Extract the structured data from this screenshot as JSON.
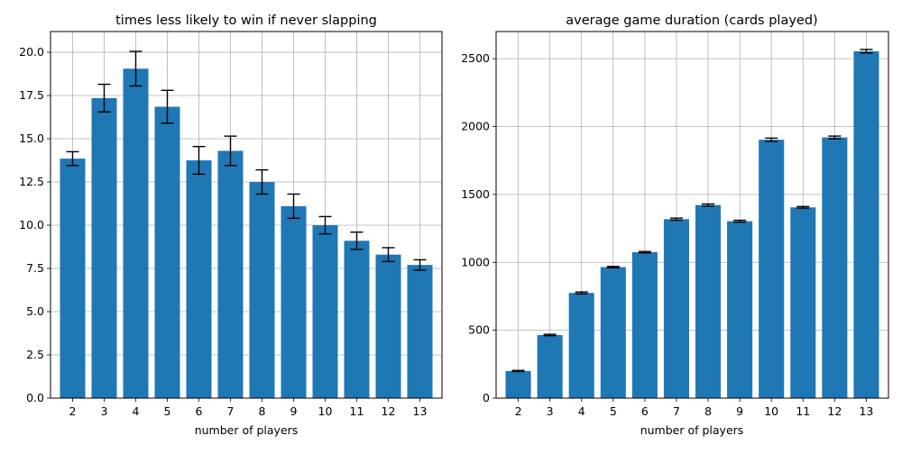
{
  "chart_data": [
    {
      "type": "bar",
      "title": "times less likely to win if never slapping",
      "xlabel": "number of players",
      "ylabel": "",
      "categories": [
        "2",
        "3",
        "4",
        "5",
        "6",
        "7",
        "8",
        "9",
        "10",
        "11",
        "12",
        "13"
      ],
      "values": [
        13.85,
        17.35,
        19.05,
        16.85,
        13.75,
        14.3,
        12.5,
        11.1,
        10.0,
        9.1,
        8.3,
        7.7
      ],
      "errors": [
        0.4,
        0.8,
        1.0,
        0.95,
        0.8,
        0.85,
        0.7,
        0.7,
        0.5,
        0.5,
        0.4,
        0.3
      ],
      "ylim": [
        0,
        21.2
      ],
      "yticks": [
        "0.0",
        "2.5",
        "5.0",
        "7.5",
        "10.0",
        "12.5",
        "15.0",
        "17.5",
        "20.0"
      ],
      "grid": true,
      "color": "#1f77b4"
    },
    {
      "type": "bar",
      "title": "average game duration (cards played)",
      "xlabel": "number of players",
      "ylabel": "",
      "categories": [
        "2",
        "3",
        "4",
        "5",
        "6",
        "7",
        "8",
        "9",
        "10",
        "11",
        "12",
        "13"
      ],
      "values": [
        200,
        465,
        775,
        965,
        1075,
        1318,
        1422,
        1303,
        1903,
        1405,
        1920,
        2555
      ],
      "errors": [
        4,
        5,
        7,
        5,
        5,
        8,
        8,
        7,
        12,
        6,
        10,
        13
      ],
      "ylim": [
        0,
        2700
      ],
      "yticks": [
        "0",
        "500",
        "1000",
        "1500",
        "2000",
        "2500"
      ],
      "grid": true,
      "color": "#1f77b4"
    }
  ]
}
